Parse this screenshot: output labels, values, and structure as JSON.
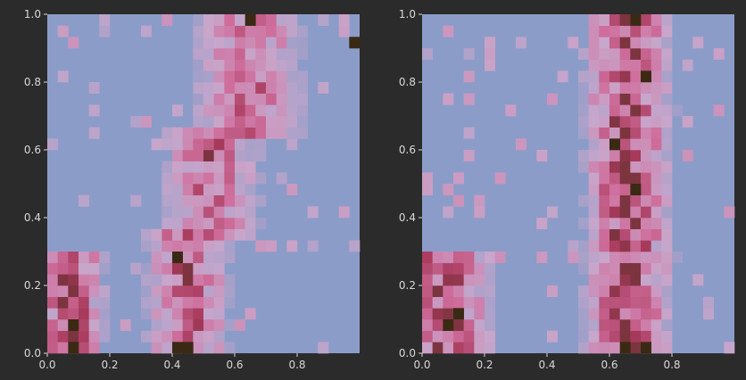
{
  "chart_data": [
    {
      "type": "heatmap",
      "title": "",
      "xlabel": "",
      "ylabel": "",
      "xlim": [
        0,
        1
      ],
      "ylim": [
        0,
        1
      ],
      "bins": 30,
      "colormap": [
        "#8c9cc8",
        "#c9a6cb",
        "#cf6f9d",
        "#a83a5c",
        "#3a2a14"
      ],
      "background": "#2b2b2b",
      "x_ticks": [
        "0.0",
        "0.2",
        "0.4",
        "0.6",
        "0.8"
      ],
      "y_ticks": [
        "0.0",
        "0.2",
        "0.4",
        "0.6",
        "0.8",
        "1.0"
      ],
      "description_of_density": "lower-left band near x=0.05-0.1 for y<0.3, diagonal band rising from x~0.4 at bottom to x~0.65 at top",
      "bands": [
        {
          "x0": 0.05,
          "x1": 0.1,
          "y0": 0.0,
          "y1": 0.3,
          "strength": 0.8
        },
        {
          "x0": 0.4,
          "x1": 0.5,
          "y0": 0.0,
          "y1": 0.35,
          "strength": 0.7
        },
        {
          "x0": 0.45,
          "x1": 0.6,
          "y0": 0.35,
          "y1": 0.65,
          "strength": 0.65
        },
        {
          "x0": 0.55,
          "x1": 0.75,
          "y0": 0.65,
          "y1": 1.0,
          "strength": 0.6
        }
      ],
      "hot_cells": [
        [
          0.07,
          0.02
        ],
        [
          0.07,
          0.09
        ],
        [
          0.41,
          0.02
        ],
        [
          0.44,
          0.02
        ],
        [
          0.65,
          0.99
        ],
        [
          0.99,
          0.93
        ],
        [
          0.42,
          0.28
        ]
      ]
    },
    {
      "type": "heatmap",
      "title": "",
      "xlabel": "",
      "ylabel": "",
      "xlim": [
        0,
        1
      ],
      "ylim": [
        0,
        1
      ],
      "bins": 30,
      "colormap": [
        "#8c9cc8",
        "#c9a6cb",
        "#cf6f9d",
        "#a83a5c",
        "#3a2a14"
      ],
      "background": "#2b2b2b",
      "x_ticks": [
        "0.0",
        "0.2",
        "0.4",
        "0.6",
        "0.8"
      ],
      "y_ticks": [
        "0.0",
        "0.2",
        "0.4",
        "0.6",
        "0.8",
        "1.0"
      ],
      "bands": [
        {
          "x0": 0.0,
          "x1": 0.15,
          "y0": 0.0,
          "y1": 0.3,
          "strength": 0.8
        },
        {
          "x0": 0.6,
          "x1": 0.72,
          "y0": 0.0,
          "y1": 1.0,
          "strength": 0.85
        }
      ],
      "hot_cells": [
        [
          0.67,
          0.99
        ],
        [
          0.65,
          0.02
        ],
        [
          0.7,
          0.02
        ],
        [
          0.69,
          0.48
        ],
        [
          0.72,
          0.81
        ],
        [
          0.63,
          0.62
        ],
        [
          0.11,
          0.12
        ],
        [
          0.07,
          0.08
        ]
      ]
    }
  ]
}
